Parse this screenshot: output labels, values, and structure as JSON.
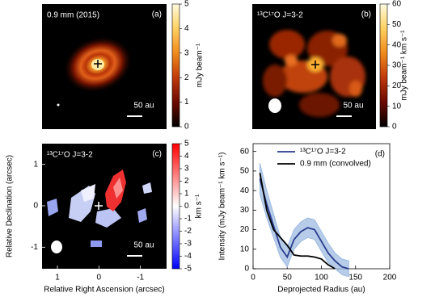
{
  "chart_data": [
    {
      "type": "image",
      "title": "0.9 mm (2015)",
      "panel": "(a)",
      "scalebar": "50 au",
      "colorbar": {
        "label": "mJy beam⁻¹",
        "lim": [
          0,
          5
        ],
        "ticks": [
          0,
          1,
          2,
          3,
          4,
          5
        ],
        "colors": [
          "#000000",
          "#6b0a00",
          "#c0390a",
          "#f08a1c",
          "#ffd060",
          "#fffbe0"
        ]
      }
    },
    {
      "type": "image",
      "title": "¹³C¹⁷O J=3-2",
      "panel": "(b)",
      "scalebar": "50 au",
      "colorbar": {
        "label": "mJy beam⁻¹ km s⁻¹",
        "lim": [
          0,
          60
        ],
        "ticks": [
          0,
          10,
          20,
          30,
          40,
          50,
          60
        ],
        "colors": [
          "#000000",
          "#6b0a00",
          "#c0390a",
          "#f08a1c",
          "#ffd060",
          "#fffbe0"
        ]
      }
    },
    {
      "type": "image",
      "title": "¹³C¹⁷O J=3-2",
      "panel": "(c)",
      "scalebar": "50 au",
      "xlabel": "Relative Right Ascension (arcsec)",
      "ylabel": "Relative Declination (arcsec)",
      "xlim": [
        1.37,
        -1.63
      ],
      "ylim": [
        -1.52,
        1.5
      ],
      "xticks": [
        1,
        0,
        -1
      ],
      "yticks": [
        1,
        0,
        -1
      ],
      "colorbar": {
        "label": "km s⁻¹",
        "lim": [
          -5,
          5
        ],
        "ticks": [
          -5,
          -4,
          -3,
          -2,
          -1,
          0,
          1,
          2,
          3,
          4,
          5
        ],
        "colors": [
          "#0000ff",
          "#ffffff",
          "#ff0000"
        ]
      }
    },
    {
      "type": "line",
      "panel": "(d)",
      "xlabel": "Deprojected Radius (au)",
      "ylabel": "Intensity (mJy beam⁻¹ km s⁻¹)",
      "xlim": [
        0,
        200
      ],
      "ylim": [
        0,
        64
      ],
      "xticks": [
        0,
        50,
        100,
        150,
        200
      ],
      "yticks": [
        0,
        10,
        20,
        30,
        40,
        50,
        60
      ],
      "legend": "upper right",
      "x": [
        10,
        20,
        30,
        40,
        50,
        60,
        70,
        80,
        90,
        100,
        110,
        120,
        130,
        140
      ],
      "series": [
        {
          "name": "¹³C¹⁷O J=3-2",
          "color": "#2a3d8f",
          "band_color": "#9dbbe0",
          "values": [
            46,
            33,
            22,
            11,
            6,
            15,
            19,
            21,
            20,
            14,
            8,
            4,
            1,
            0
          ],
          "errors": [
            8,
            7,
            6,
            5,
            5,
            5,
            5,
            5,
            5,
            5,
            5,
            4,
            4,
            4
          ]
        },
        {
          "name": "0.9 mm (convolved)",
          "color": "#000000",
          "values": [
            49,
            30,
            20,
            16,
            12,
            7,
            6.5,
            6.5,
            6,
            5,
            2,
            0,
            null,
            null
          ]
        }
      ]
    }
  ]
}
